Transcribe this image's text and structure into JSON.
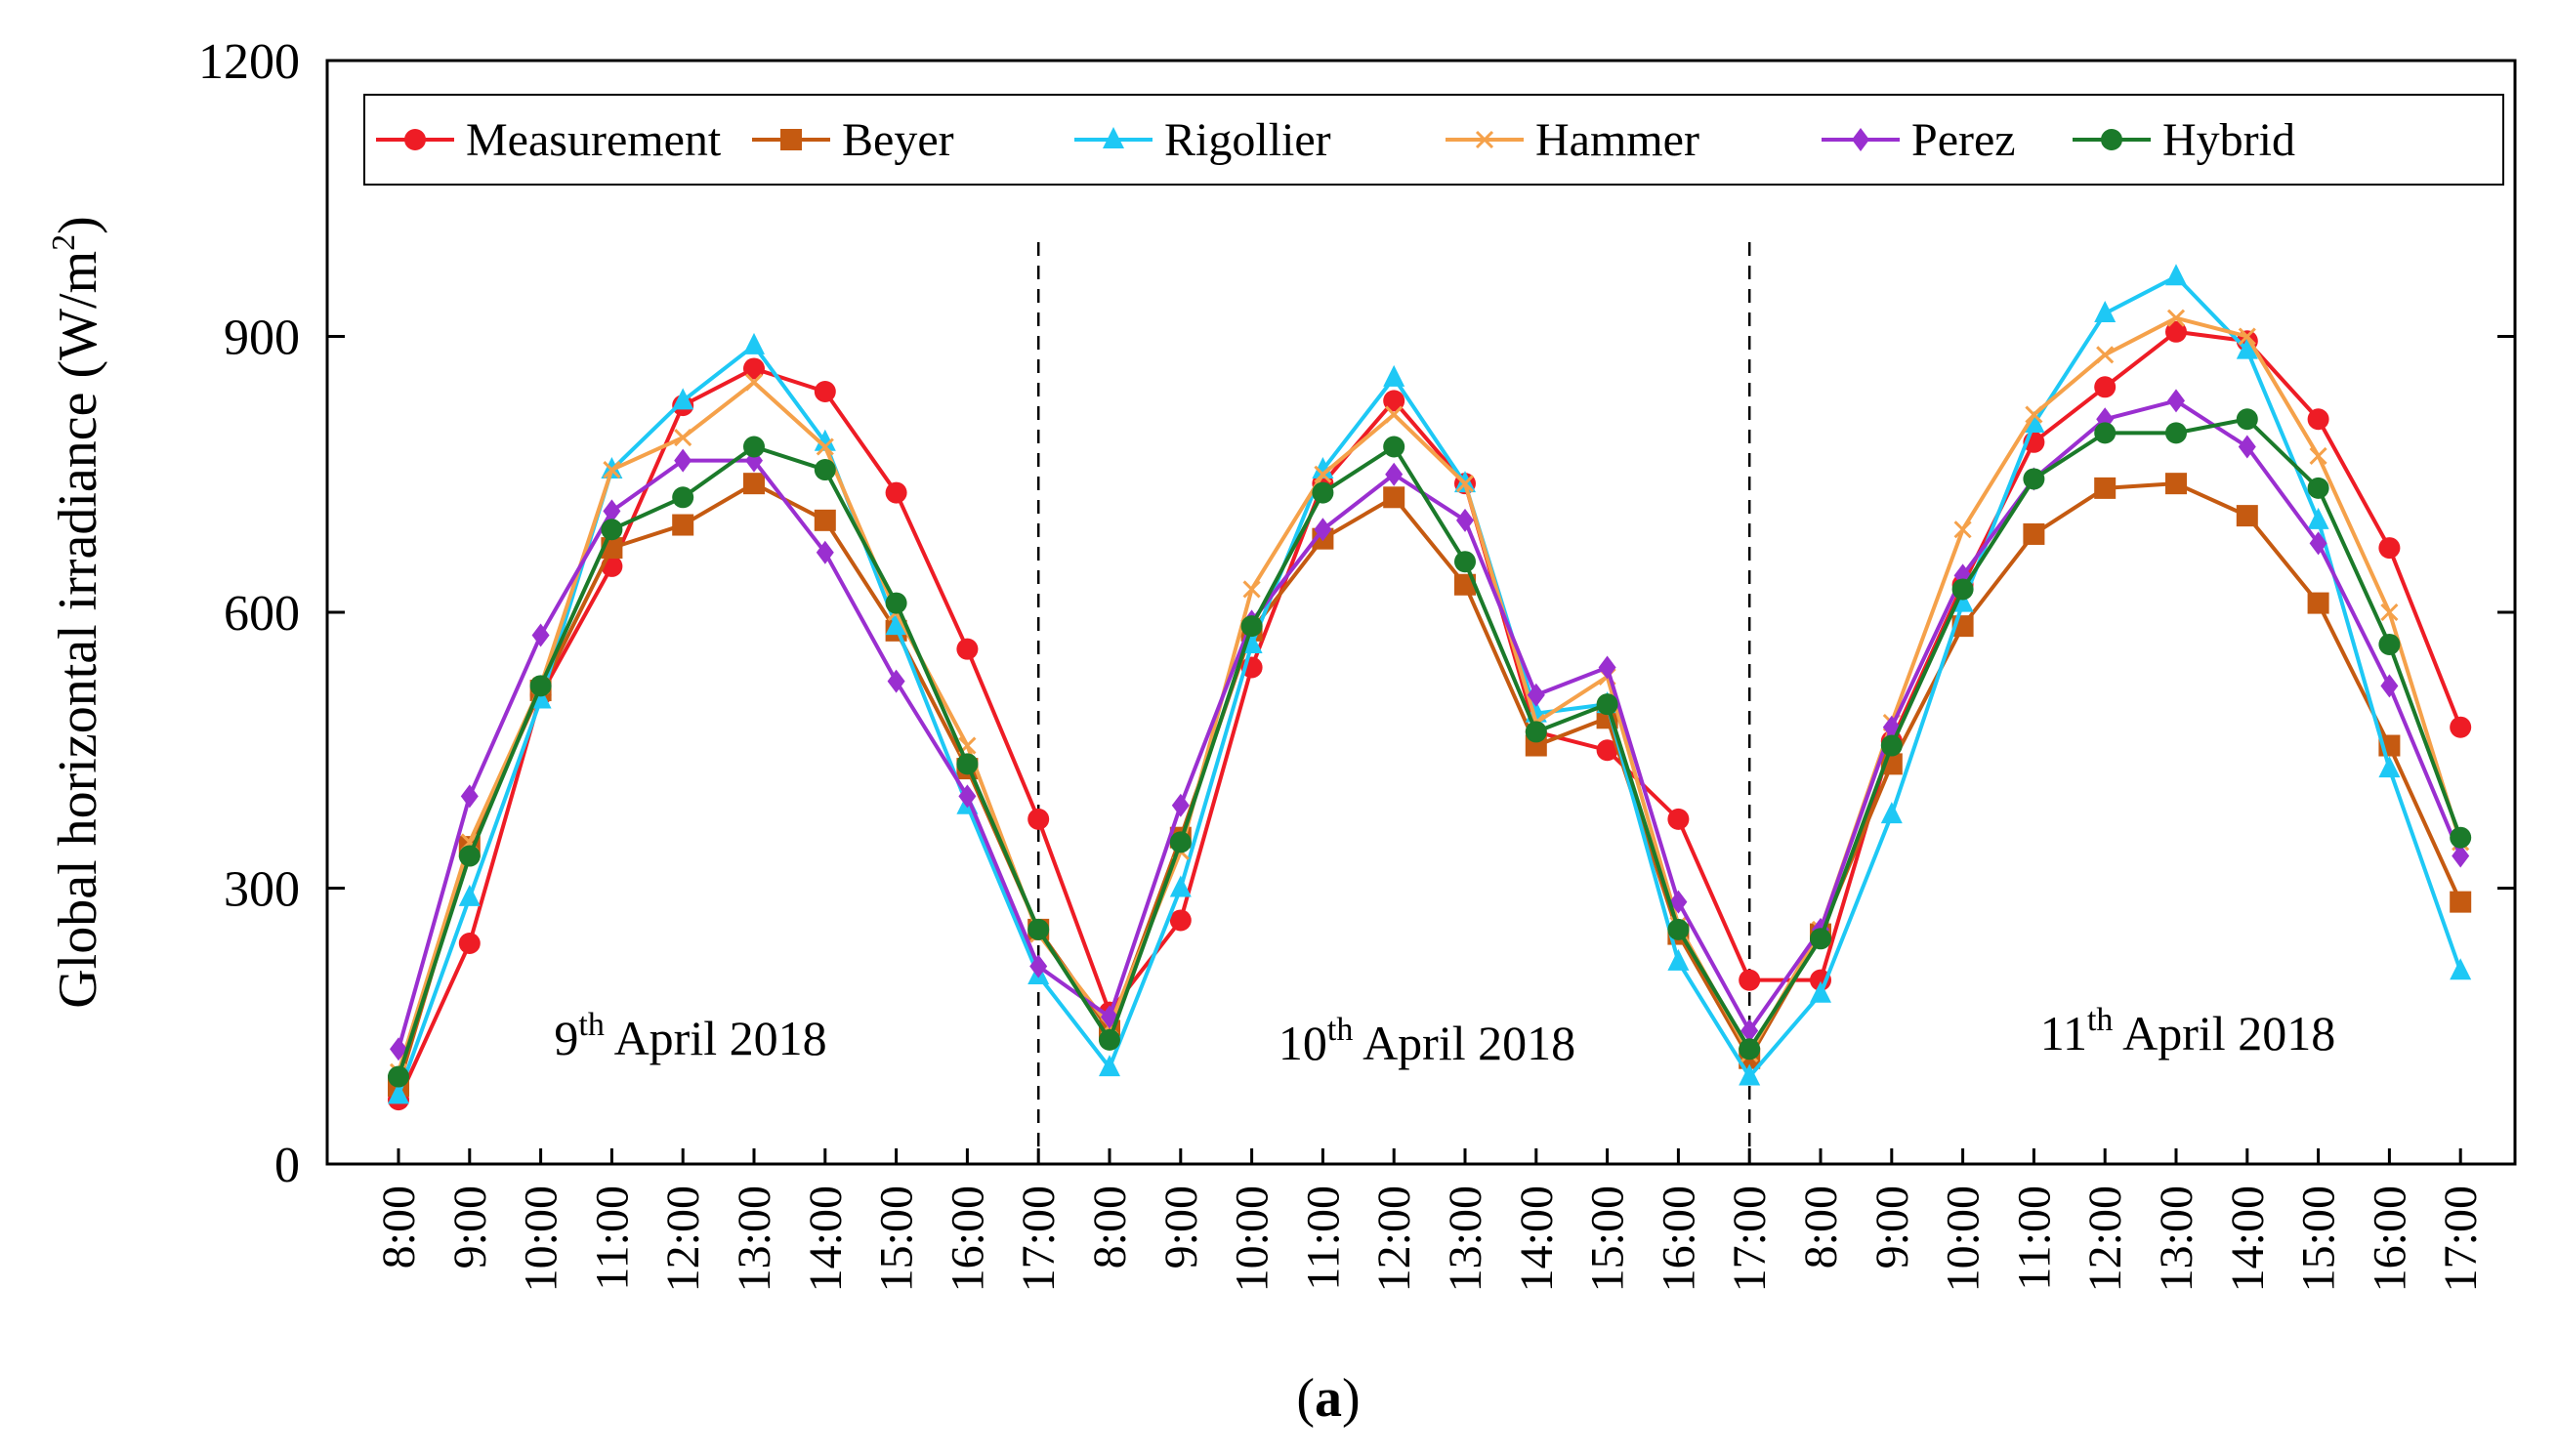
{
  "chart_data": {
    "type": "line",
    "title": "",
    "xlabel": "",
    "ylabel": "Global horizontal irradiance (W/m2)",
    "ylabel_parts": {
      "main": "Global horizontal irradiance (W/m",
      "sup": "2",
      "close": ")"
    },
    "ylim": [
      0,
      1200
    ],
    "yticks": [
      0,
      300,
      600,
      900,
      1200
    ],
    "categories": [
      "8:00",
      "9:00",
      "10:00",
      "11:00",
      "12:00",
      "13:00",
      "14:00",
      "15:00",
      "16:00",
      "17:00",
      "8:00",
      "9:00",
      "10:00",
      "11:00",
      "12:00",
      "13:00",
      "14:00",
      "15:00",
      "16:00",
      "17:00",
      "8:00",
      "9:00",
      "10:00",
      "11:00",
      "12:00",
      "13:00",
      "14:00",
      "15:00",
      "16:00",
      "17:00"
    ],
    "day_separators_after_index": [
      9,
      19
    ],
    "day_labels": [
      {
        "pre": "9",
        "sup": "th",
        "post": " April 2018"
      },
      {
        "pre": "10",
        "sup": "th",
        "post": " April 2018"
      },
      {
        "pre": "11",
        "sup": "th",
        "post": " April 2018"
      }
    ],
    "panel_label": {
      "open": "(",
      "letter": "a",
      "close": ")"
    },
    "legend_position": "top",
    "series": [
      {
        "name": "Measurement",
        "color": "#ee1c25",
        "marker": "circle",
        "values": [
          70,
          240,
          510,
          650,
          825,
          865,
          840,
          730,
          560,
          375,
          165,
          265,
          540,
          740,
          830,
          740,
          470,
          450,
          375,
          200,
          200,
          460,
          630,
          785,
          845,
          905,
          895,
          810,
          670,
          475
        ]
      },
      {
        "name": "Beyer",
        "color": "#c55a11",
        "marker": "square",
        "values": [
          85,
          345,
          515,
          670,
          695,
          740,
          700,
          580,
          430,
          255,
          145,
          355,
          580,
          680,
          725,
          630,
          455,
          485,
          250,
          115,
          250,
          435,
          585,
          685,
          735,
          740,
          705,
          610,
          455,
          285
        ]
      },
      {
        "name": "Rigollier",
        "color": "#1ec8f5",
        "marker": "triangle",
        "values": [
          75,
          290,
          505,
          755,
          830,
          890,
          785,
          585,
          390,
          205,
          105,
          300,
          565,
          755,
          855,
          740,
          490,
          500,
          220,
          95,
          185,
          380,
          610,
          805,
          925,
          965,
          885,
          700,
          430,
          210
        ]
      },
      {
        "name": "Hammer",
        "color": "#f5a14a",
        "marker": "x",
        "values": [
          100,
          350,
          520,
          755,
          790,
          850,
          780,
          600,
          455,
          250,
          150,
          340,
          625,
          750,
          815,
          740,
          480,
          530,
          260,
          120,
          255,
          480,
          690,
          815,
          880,
          920,
          900,
          770,
          600,
          350
        ]
      },
      {
        "name": "Perez",
        "color": "#9a2fd0",
        "marker": "diamond",
        "values": [
          125,
          400,
          575,
          710,
          765,
          765,
          665,
          525,
          400,
          215,
          160,
          390,
          590,
          690,
          750,
          700,
          510,
          540,
          285,
          145,
          255,
          475,
          640,
          745,
          810,
          830,
          780,
          675,
          520,
          335
        ]
      },
      {
        "name": "Hybrid",
        "color": "#1b7a2a",
        "marker": "circle",
        "values": [
          95,
          335,
          520,
          690,
          725,
          780,
          755,
          610,
          435,
          255,
          135,
          350,
          585,
          730,
          780,
          655,
          470,
          500,
          255,
          125,
          245,
          455,
          625,
          745,
          795,
          795,
          810,
          735,
          565,
          355
        ]
      }
    ]
  }
}
